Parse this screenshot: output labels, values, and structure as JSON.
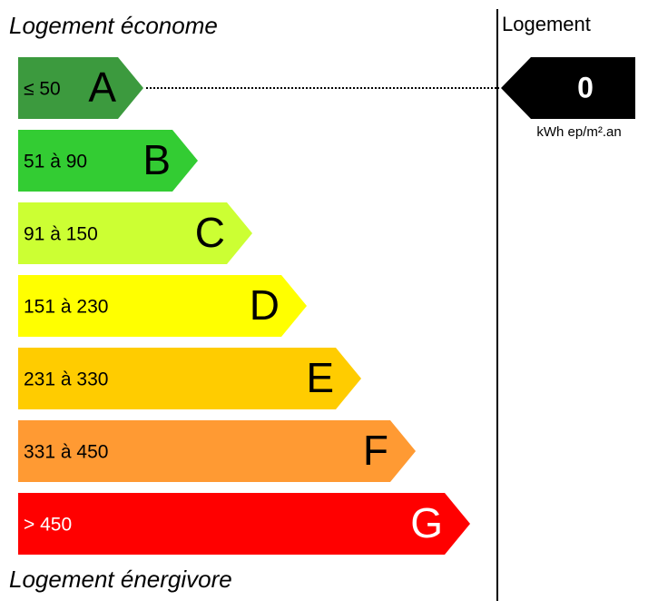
{
  "top_label": "Logement économe",
  "bottom_label": "Logement énergivore",
  "classes": [
    {
      "range": "≤ 50",
      "letter": "A",
      "color": "#3c9a3e",
      "text_color": "#000000"
    },
    {
      "range": "51 à 90",
      "letter": "B",
      "color": "#33cc33",
      "text_color": "#000000"
    },
    {
      "range": "91 à 150",
      "letter": "C",
      "color": "#ccff33",
      "text_color": "#000000"
    },
    {
      "range": "151 à 230",
      "letter": "D",
      "color": "#ffff00",
      "text_color": "#000000"
    },
    {
      "range": "231 à 330",
      "letter": "E",
      "color": "#ffcc00",
      "text_color": "#000000"
    },
    {
      "range": "331 à 450",
      "letter": "F",
      "color": "#ff9a33",
      "text_color": "#000000"
    },
    {
      "range": "> 450",
      "letter": "G",
      "color": "#ff0000",
      "text_color": "#ffffff"
    }
  ],
  "indicator": {
    "header": "Logement",
    "value": "0",
    "unit": "kWh ep/m².an",
    "class_index": 0
  }
}
